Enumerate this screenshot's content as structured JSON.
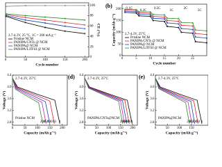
{
  "chart_data": [
    {
      "type": "line",
      "xlabel": "Cycle number",
      "y2label": "CE (%)",
      "note": "2.7-4.3V, 25 °C, 1C = 200 mA g⁻¹",
      "x": [
        1,
        50,
        100,
        150,
        200
      ],
      "xlim": [
        0,
        210
      ],
      "xticks": [
        0,
        50,
        100,
        150,
        200
      ],
      "ylim": [
        0,
        220
      ],
      "y2lim": [
        0,
        105
      ],
      "y2ticks": [
        0,
        20,
        40,
        60,
        80,
        100
      ],
      "series": [
        {
          "name": "Pristine NCM",
          "color": "#000000",
          "values": [
            165,
            140,
            120,
            105,
            95
          ]
        },
        {
          "name": "PANIPA/CNTs @ NCM",
          "color": "#d62728",
          "values": [
            172,
            160,
            150,
            140,
            130
          ]
        },
        {
          "name": "PANIPA@ NCM",
          "color": "#1f3fbf",
          "values": [
            168,
            150,
            138,
            125,
            115
          ]
        },
        {
          "name": "PANIPA/LiTFSI @ NCM",
          "color": "#2e8b2e",
          "values": [
            175,
            168,
            162,
            156,
            150
          ]
        },
        {
          "color": "#888888",
          "axis": "y2",
          "values": [
            98,
            99.5,
            99.6,
            99.6,
            99.7
          ]
        }
      ]
    },
    {
      "type": "line",
      "label": "(b)",
      "xlabel": "Cycle number",
      "ylabel": "Capacity (mAh g⁻¹)",
      "note": "2.7-4.3V, 25°C",
      "annotations": [
        "0.1C",
        "0.2C",
        "0.5C",
        "1C",
        "2C",
        "5C"
      ],
      "x": [
        1,
        5,
        6,
        10,
        11,
        15,
        16,
        20,
        21,
        25,
        26,
        30
      ],
      "xlim": [
        0,
        30
      ],
      "xticks": [
        0,
        5,
        10,
        15,
        20,
        25
      ],
      "ylim": [
        0,
        220
      ],
      "yticks": [
        0,
        50,
        100,
        150,
        200
      ],
      "series": [
        {
          "name": "Pristine NCM",
          "color": "#000000",
          "values": [
            185,
            182,
            170,
            168,
            150,
            146,
            125,
            120,
            100,
            96,
            60,
            55
          ]
        },
        {
          "name": "PANIPA/CNTs @ NCM",
          "color": "#d62728",
          "values": [
            195,
            193,
            183,
            181,
            168,
            165,
            150,
            147,
            130,
            127,
            95,
            90
          ]
        },
        {
          "name": "PANIPA@ NCM",
          "color": "#1f3fbf",
          "values": [
            190,
            188,
            177,
            175,
            160,
            157,
            140,
            136,
            116,
            112,
            80,
            75
          ]
        },
        {
          "name": "PANIPA/LiTFSI @ NCM",
          "color": "#2e8b2e",
          "values": [
            198,
            197,
            188,
            187,
            176,
            174,
            160,
            158,
            142,
            140,
            110,
            106
          ]
        }
      ]
    },
    {
      "type": "line",
      "xlabel": "Capacity (mAh g⁻¹)",
      "ylabel": "Voltage (V)",
      "note": "2.7-4.3V, 25°C",
      "legend": "Pristine NCM",
      "xlim": [
        0,
        220
      ],
      "xticks": [
        0,
        50,
        100,
        150,
        200
      ],
      "ylim": [
        2.7,
        4.4
      ],
      "yticks": [
        2.8,
        3.2,
        3.6,
        {
          "value": 4.0,
          "label": "4.0"
        },
        4.4
      ],
      "series": [
        {
          "name": "1",
          "color": "#000000",
          "x": [
            0,
            20,
            100,
            170,
            190
          ],
          "values": [
            4.3,
            4.0,
            3.75,
            3.55,
            2.75
          ]
        },
        {
          "name": "50",
          "color": "#d62728",
          "x": [
            0,
            18,
            90,
            150,
            168
          ],
          "values": [
            4.3,
            3.98,
            3.73,
            3.52,
            2.75
          ]
        },
        {
          "name": "100",
          "color": "#1f3fbf",
          "x": [
            0,
            16,
            80,
            132,
            150
          ],
          "values": [
            4.3,
            3.96,
            3.71,
            3.5,
            2.75
          ]
        },
        {
          "name": "150",
          "color": "#c020c0",
          "x": [
            0,
            14,
            70,
            118,
            135
          ],
          "values": [
            4.3,
            3.94,
            3.69,
            3.48,
            2.75
          ]
        },
        {
          "name": "200",
          "color": "#2e8b2e",
          "x": [
            0,
            12,
            62,
            105,
            122
          ],
          "values": [
            4.3,
            3.92,
            3.67,
            3.46,
            2.75
          ]
        }
      ]
    },
    {
      "type": "line",
      "label": "(d)",
      "xlabel": "Capacity (mAh g⁻¹)",
      "ylabel": "Voltage (V)",
      "note": "2.7-4.3V, 25°C",
      "legend": "PANIPA/CNTs@NCM",
      "xlim": [
        0,
        220
      ],
      "xticks": [
        0,
        50,
        100,
        150,
        200
      ],
      "ylim": [
        2.7,
        4.4
      ],
      "yticks": [
        2.8,
        3.2,
        3.6,
        {
          "value": 4.0,
          "label": "4.0"
        },
        4.4
      ],
      "series": [
        {
          "name": "1",
          "color": "#000000",
          "x": [
            0,
            20,
            105,
            178,
            198
          ],
          "values": [
            4.3,
            4.0,
            3.75,
            3.55,
            2.75
          ]
        },
        {
          "name": "50",
          "color": "#d62728",
          "x": [
            0,
            19,
            100,
            168,
            186
          ],
          "values": [
            4.3,
            3.99,
            3.74,
            3.54,
            2.75
          ]
        },
        {
          "name": "100",
          "color": "#1f3fbf",
          "x": [
            0,
            18,
            95,
            158,
            176
          ],
          "values": [
            4.3,
            3.98,
            3.73,
            3.53,
            2.75
          ]
        },
        {
          "name": "150",
          "color": "#c020c0",
          "x": [
            0,
            17,
            90,
            150,
            166
          ],
          "values": [
            4.3,
            3.97,
            3.72,
            3.52,
            2.75
          ]
        },
        {
          "name": "200",
          "color": "#2e8b2e",
          "x": [
            0,
            16,
            85,
            142,
            158
          ],
          "values": [
            4.3,
            3.96,
            3.71,
            3.51,
            2.75
          ]
        }
      ]
    },
    {
      "type": "line",
      "label": "(e)",
      "xlabel": "Capacity (mAh g⁻¹)",
      "ylabel": "Voltage (V)",
      "note": "2.7-4.3V, 25°C",
      "legend": "PANIPA@NCM",
      "xlim": [
        0,
        220
      ],
      "xticks": [
        0,
        50,
        100,
        150
      ],
      "ylim": [
        2.7,
        4.4
      ],
      "yticks": [
        2.8,
        3.2,
        3.6,
        {
          "value": 4.0,
          "label": "4.0"
        },
        4.4
      ],
      "series": [
        {
          "name": "1",
          "color": "#000000",
          "x": [
            0,
            20,
            102,
            174,
            194
          ],
          "values": [
            4.3,
            4.0,
            3.75,
            3.55,
            2.75
          ]
        },
        {
          "name": "50",
          "color": "#d62728",
          "x": [
            0,
            18,
            94,
            160,
            178
          ],
          "values": [
            4.3,
            3.98,
            3.73,
            3.53,
            2.75
          ]
        },
        {
          "name": "100",
          "color": "#1f3fbf",
          "x": [
            0,
            17,
            86,
            148,
            164
          ],
          "values": [
            4.3,
            3.97,
            3.72,
            3.51,
            2.75
          ]
        },
        {
          "name": "150",
          "color": "#c020c0",
          "x": [
            0,
            15,
            80,
            136,
            152
          ],
          "values": [
            4.3,
            3.95,
            3.7,
            3.49,
            2.75
          ]
        },
        {
          "name": "200",
          "color": "#2e8b2e",
          "x": [
            0,
            14,
            74,
            126,
            142
          ],
          "values": [
            4.3,
            3.94,
            3.69,
            3.47,
            2.75
          ]
        }
      ]
    }
  ]
}
